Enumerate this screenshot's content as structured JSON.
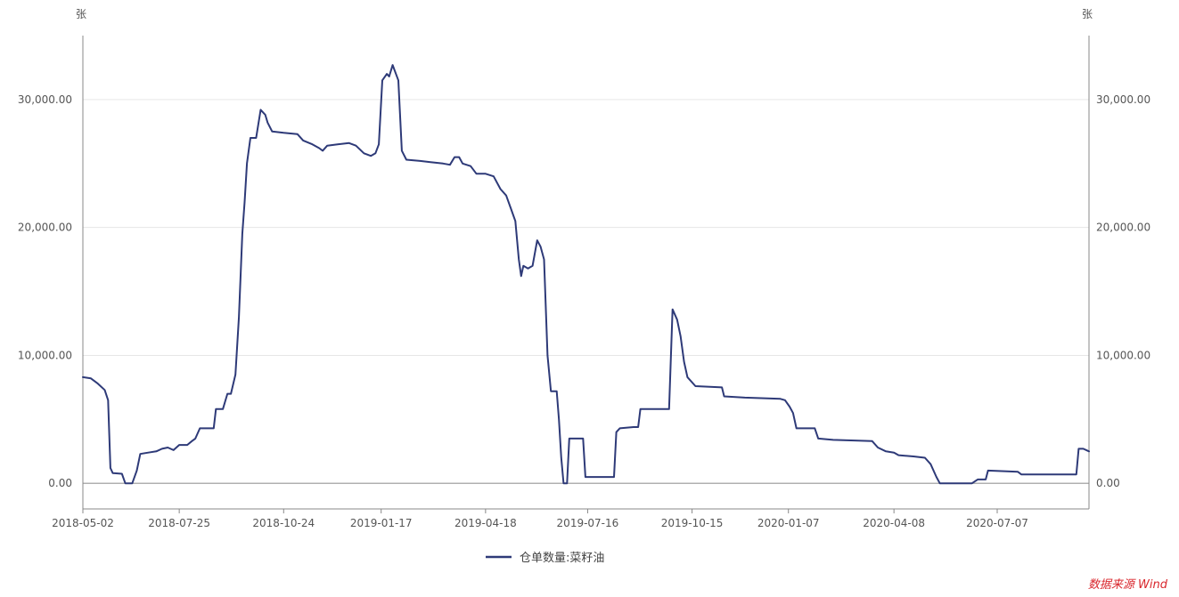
{
  "chart_data": {
    "type": "line",
    "unit_left": "张",
    "unit_right": "张",
    "x_tick_labels": [
      "2018-05-02",
      "2018-07-25",
      "2018-10-24",
      "2019-01-17",
      "2019-04-18",
      "2019-07-16",
      "2019-10-15",
      "2020-01-07",
      "2020-04-08",
      "2020-07-07"
    ],
    "y_tick_labels_left": [
      "0.00",
      "10,000.00",
      "20,000.00",
      "30,000.00"
    ],
    "y_tick_labels_right": [
      "0.00",
      "10,000.00",
      "20,000.00",
      "30,000.00"
    ],
    "y_ticks": [
      0,
      10000,
      20000,
      30000
    ],
    "ylim": [
      -2000,
      35000
    ],
    "xlim": [
      "2018-05-02",
      "2020-09-25"
    ],
    "grid": true,
    "legend_position": "bottom-center",
    "series": [
      {
        "name": "仓单数量:菜籽油",
        "color": "#2e3a78",
        "points": [
          [
            "2018-05-02",
            8300
          ],
          [
            "2018-05-09",
            8200
          ],
          [
            "2018-05-15",
            7800
          ],
          [
            "2018-05-21",
            7300
          ],
          [
            "2018-05-24",
            6500
          ],
          [
            "2018-05-26",
            1200
          ],
          [
            "2018-05-28",
            800
          ],
          [
            "2018-06-05",
            750
          ],
          [
            "2018-06-08",
            0
          ],
          [
            "2018-06-14",
            0
          ],
          [
            "2018-06-18",
            1000
          ],
          [
            "2018-06-21",
            2300
          ],
          [
            "2018-06-28",
            2400
          ],
          [
            "2018-07-05",
            2500
          ],
          [
            "2018-07-10",
            2700
          ],
          [
            "2018-07-15",
            2800
          ],
          [
            "2018-07-20",
            2600
          ],
          [
            "2018-07-25",
            3000
          ],
          [
            "2018-08-01",
            3000
          ],
          [
            "2018-08-05",
            3300
          ],
          [
            "2018-08-08",
            3500
          ],
          [
            "2018-08-12",
            4300
          ],
          [
            "2018-08-20",
            4300
          ],
          [
            "2018-08-24",
            4300
          ],
          [
            "2018-08-26",
            5800
          ],
          [
            "2018-09-01",
            5800
          ],
          [
            "2018-09-05",
            7000
          ],
          [
            "2018-09-08",
            7000
          ],
          [
            "2018-09-12",
            8500
          ],
          [
            "2018-09-15",
            13000
          ],
          [
            "2018-09-18",
            19500
          ],
          [
            "2018-09-20",
            22000
          ],
          [
            "2018-09-22",
            25000
          ],
          [
            "2018-09-25",
            27000
          ],
          [
            "2018-09-30",
            27000
          ],
          [
            "2018-10-04",
            29200
          ],
          [
            "2018-10-08",
            28800
          ],
          [
            "2018-10-10",
            28200
          ],
          [
            "2018-10-14",
            27500
          ],
          [
            "2018-10-24",
            27400
          ],
          [
            "2018-11-05",
            27300
          ],
          [
            "2018-11-10",
            26800
          ],
          [
            "2018-11-18",
            26500
          ],
          [
            "2018-11-24",
            26200
          ],
          [
            "2018-11-27",
            26000
          ],
          [
            "2018-12-01",
            26400
          ],
          [
            "2018-12-10",
            26500
          ],
          [
            "2018-12-20",
            26600
          ],
          [
            "2018-12-26",
            26400
          ],
          [
            "2019-01-02",
            25800
          ],
          [
            "2019-01-08",
            25600
          ],
          [
            "2019-01-12",
            25800
          ],
          [
            "2019-01-15",
            26500
          ],
          [
            "2019-01-18",
            31500
          ],
          [
            "2019-01-22",
            32000
          ],
          [
            "2019-01-24",
            31800
          ],
          [
            "2019-01-27",
            32700
          ],
          [
            "2019-02-01",
            31500
          ],
          [
            "2019-02-04",
            26000
          ],
          [
            "2019-02-08",
            25300
          ],
          [
            "2019-02-20",
            25200
          ],
          [
            "2019-03-01",
            25100
          ],
          [
            "2019-03-12",
            25000
          ],
          [
            "2019-03-18",
            24900
          ],
          [
            "2019-03-22",
            25500
          ],
          [
            "2019-03-26",
            25500
          ],
          [
            "2019-03-29",
            25000
          ],
          [
            "2019-04-05",
            24800
          ],
          [
            "2019-04-10",
            24200
          ],
          [
            "2019-04-18",
            24200
          ],
          [
            "2019-04-25",
            24000
          ],
          [
            "2019-05-01",
            23000
          ],
          [
            "2019-05-06",
            22500
          ],
          [
            "2019-05-10",
            21500
          ],
          [
            "2019-05-14",
            20500
          ],
          [
            "2019-05-17",
            17500
          ],
          [
            "2019-05-19",
            16200
          ],
          [
            "2019-05-21",
            17000
          ],
          [
            "2019-05-25",
            16800
          ],
          [
            "2019-05-29",
            17000
          ],
          [
            "2019-06-02",
            19000
          ],
          [
            "2019-06-05",
            18500
          ],
          [
            "2019-06-08",
            17500
          ],
          [
            "2019-06-11",
            10000
          ],
          [
            "2019-06-14",
            7200
          ],
          [
            "2019-06-19",
            7200
          ],
          [
            "2019-06-21",
            5000
          ],
          [
            "2019-06-23",
            2000
          ],
          [
            "2019-06-25",
            0
          ],
          [
            "2019-06-28",
            0
          ],
          [
            "2019-06-30",
            3500
          ],
          [
            "2019-07-12",
            3500
          ],
          [
            "2019-07-14",
            500
          ],
          [
            "2019-07-22",
            500
          ],
          [
            "2019-08-05",
            500
          ],
          [
            "2019-08-08",
            500
          ],
          [
            "2019-08-10",
            4000
          ],
          [
            "2019-08-13",
            4300
          ],
          [
            "2019-08-25",
            4400
          ],
          [
            "2019-08-29",
            4400
          ],
          [
            "2019-08-31",
            5800
          ],
          [
            "2019-09-25",
            5800
          ],
          [
            "2019-09-28",
            13600
          ],
          [
            "2019-10-02",
            12800
          ],
          [
            "2019-10-05",
            11500
          ],
          [
            "2019-10-08",
            9500
          ],
          [
            "2019-10-11",
            8300
          ],
          [
            "2019-10-18",
            7600
          ],
          [
            "2019-11-10",
            7500
          ],
          [
            "2019-11-12",
            6800
          ],
          [
            "2019-11-30",
            6700
          ],
          [
            "2019-12-31",
            6600
          ],
          [
            "2020-01-04",
            6500
          ],
          [
            "2020-01-08",
            6000
          ],
          [
            "2020-01-11",
            5500
          ],
          [
            "2020-01-14",
            4300
          ],
          [
            "2020-01-30",
            4300
          ],
          [
            "2020-02-02",
            3500
          ],
          [
            "2020-02-15",
            3400
          ],
          [
            "2020-03-20",
            3300
          ],
          [
            "2020-03-25",
            2800
          ],
          [
            "2020-04-01",
            2500
          ],
          [
            "2020-04-08",
            2400
          ],
          [
            "2020-04-12",
            2200
          ],
          [
            "2020-04-25",
            2100
          ],
          [
            "2020-05-05",
            2000
          ],
          [
            "2020-05-10",
            1500
          ],
          [
            "2020-05-15",
            500
          ],
          [
            "2020-05-18",
            0
          ],
          [
            "2020-06-15",
            0
          ],
          [
            "2020-06-20",
            300
          ],
          [
            "2020-06-27",
            300
          ],
          [
            "2020-06-29",
            1000
          ],
          [
            "2020-07-25",
            900
          ],
          [
            "2020-07-28",
            700
          ],
          [
            "2020-08-24",
            700
          ],
          [
            "2020-09-14",
            700
          ],
          [
            "2020-09-16",
            2700
          ],
          [
            "2020-09-20",
            2700
          ],
          [
            "2020-09-25",
            2500
          ]
        ]
      }
    ]
  },
  "source_label": "数据来源 Wind"
}
